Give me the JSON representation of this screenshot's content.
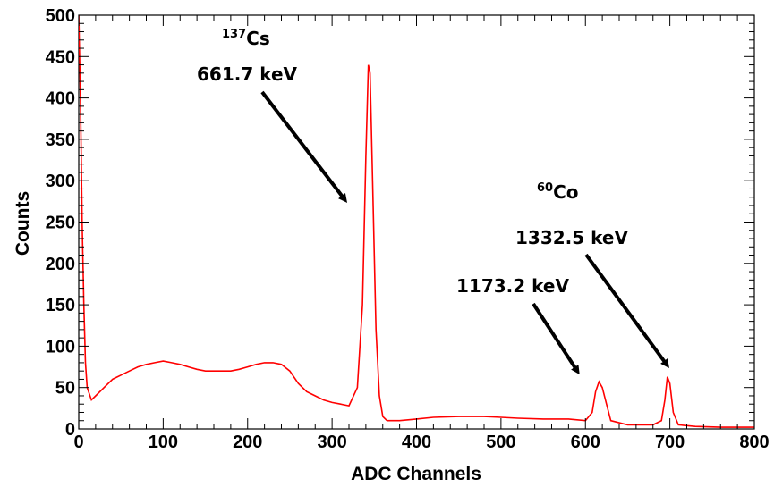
{
  "chart_data": {
    "type": "line",
    "title": "",
    "xlabel": "ADC Channels",
    "ylabel": "Counts",
    "xlim": [
      0,
      800
    ],
    "ylim": [
      0,
      500
    ],
    "xticks": [
      "0",
      "100",
      "200",
      "300",
      "400",
      "500",
      "600",
      "700",
      "800"
    ],
    "yticks": [
      "0",
      "50",
      "100",
      "150",
      "200",
      "250",
      "300",
      "350",
      "400",
      "450",
      "500"
    ],
    "grid": false,
    "color": "#ff0000",
    "series": [
      {
        "x": [
          0,
          2,
          4,
          6,
          8,
          10,
          15,
          20,
          30,
          40,
          50,
          60,
          70,
          80,
          90,
          100,
          110,
          120,
          130,
          140,
          150,
          160,
          170,
          180,
          190,
          200,
          210,
          220,
          230,
          240,
          250,
          260,
          270,
          280,
          290,
          300,
          310,
          320,
          330,
          336,
          340,
          343,
          345,
          348,
          352,
          356,
          360,
          365,
          370,
          380,
          400,
          420,
          450,
          480,
          500,
          520,
          550,
          580,
          600,
          608,
          612,
          616,
          620,
          625,
          630,
          650,
          680,
          690,
          694,
          697,
          700,
          704,
          710,
          730,
          760,
          780,
          800
        ],
        "y": [
          500,
          400,
          250,
          150,
          80,
          50,
          35,
          40,
          50,
          60,
          65,
          70,
          75,
          78,
          80,
          82,
          80,
          78,
          75,
          72,
          70,
          70,
          70,
          70,
          72,
          75,
          78,
          80,
          80,
          78,
          70,
          55,
          45,
          40,
          35,
          32,
          30,
          28,
          50,
          150,
          330,
          440,
          430,
          300,
          120,
          40,
          15,
          10,
          10,
          10,
          12,
          14,
          15,
          15,
          14,
          13,
          12,
          12,
          10,
          20,
          45,
          57,
          50,
          30,
          10,
          5,
          5,
          10,
          35,
          63,
          55,
          20,
          5,
          3,
          2,
          2,
          2
        ]
      }
    ],
    "annotations": [
      {
        "name": "cs137-label",
        "sup": "137",
        "text": "Cs"
      },
      {
        "name": "cs137-energy",
        "text": "661.7 keV"
      },
      {
        "name": "co60-label",
        "sup": "60",
        "text": "Co"
      },
      {
        "name": "co60-energy-1332",
        "text": "1332.5 keV"
      },
      {
        "name": "co60-energy-1173",
        "text": "1173.2 keV"
      }
    ]
  }
}
